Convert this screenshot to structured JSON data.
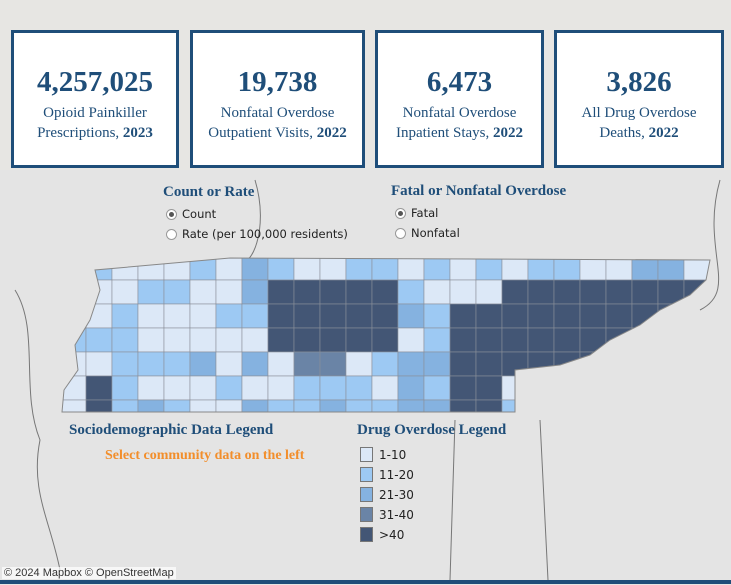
{
  "kpis": [
    {
      "value": "4,257,025",
      "label": "Opioid Painkiller",
      "label2": "Prescriptions, ",
      "year": "2023"
    },
    {
      "value": "19,738",
      "label": "Nonfatal Overdose",
      "label2": "Outpatient Visits, ",
      "year": "2022"
    },
    {
      "value": "6,473",
      "label": "Nonfatal Overdose",
      "label2": "Inpatient Stays, ",
      "year": "2022"
    },
    {
      "value": "3,826",
      "label": "All Drug Overdose",
      "label2": "Deaths, ",
      "year": "2022"
    }
  ],
  "count_or_rate": {
    "title": "Count or Rate",
    "options": [
      "Count",
      "Rate (per 100,000 residents)"
    ],
    "selected": "Count"
  },
  "fatal_or_nonfatal": {
    "title": "Fatal or Nonfatal Overdose",
    "options": [
      "Fatal",
      "Nonfatal"
    ],
    "selected": "Fatal"
  },
  "socio_legend": {
    "title": "Sociodemographic Data Legend",
    "message": "Select community data on the left",
    "message_color": "#f28e2b"
  },
  "overdose_legend": {
    "title": "Drug Overdose Legend",
    "items": [
      {
        "label": "1-10",
        "color": "#dce8f7"
      },
      {
        "label": "11-20",
        "color": "#9dc9f3"
      },
      {
        "label": "21-30",
        "color": "#85b2e0"
      },
      {
        "label": "31-40",
        "color": "#6a84a6"
      },
      {
        "label": ">40",
        "color": "#435675"
      }
    ]
  },
  "attribution": "© 2024 Mapbox  © OpenStreetMap"
}
